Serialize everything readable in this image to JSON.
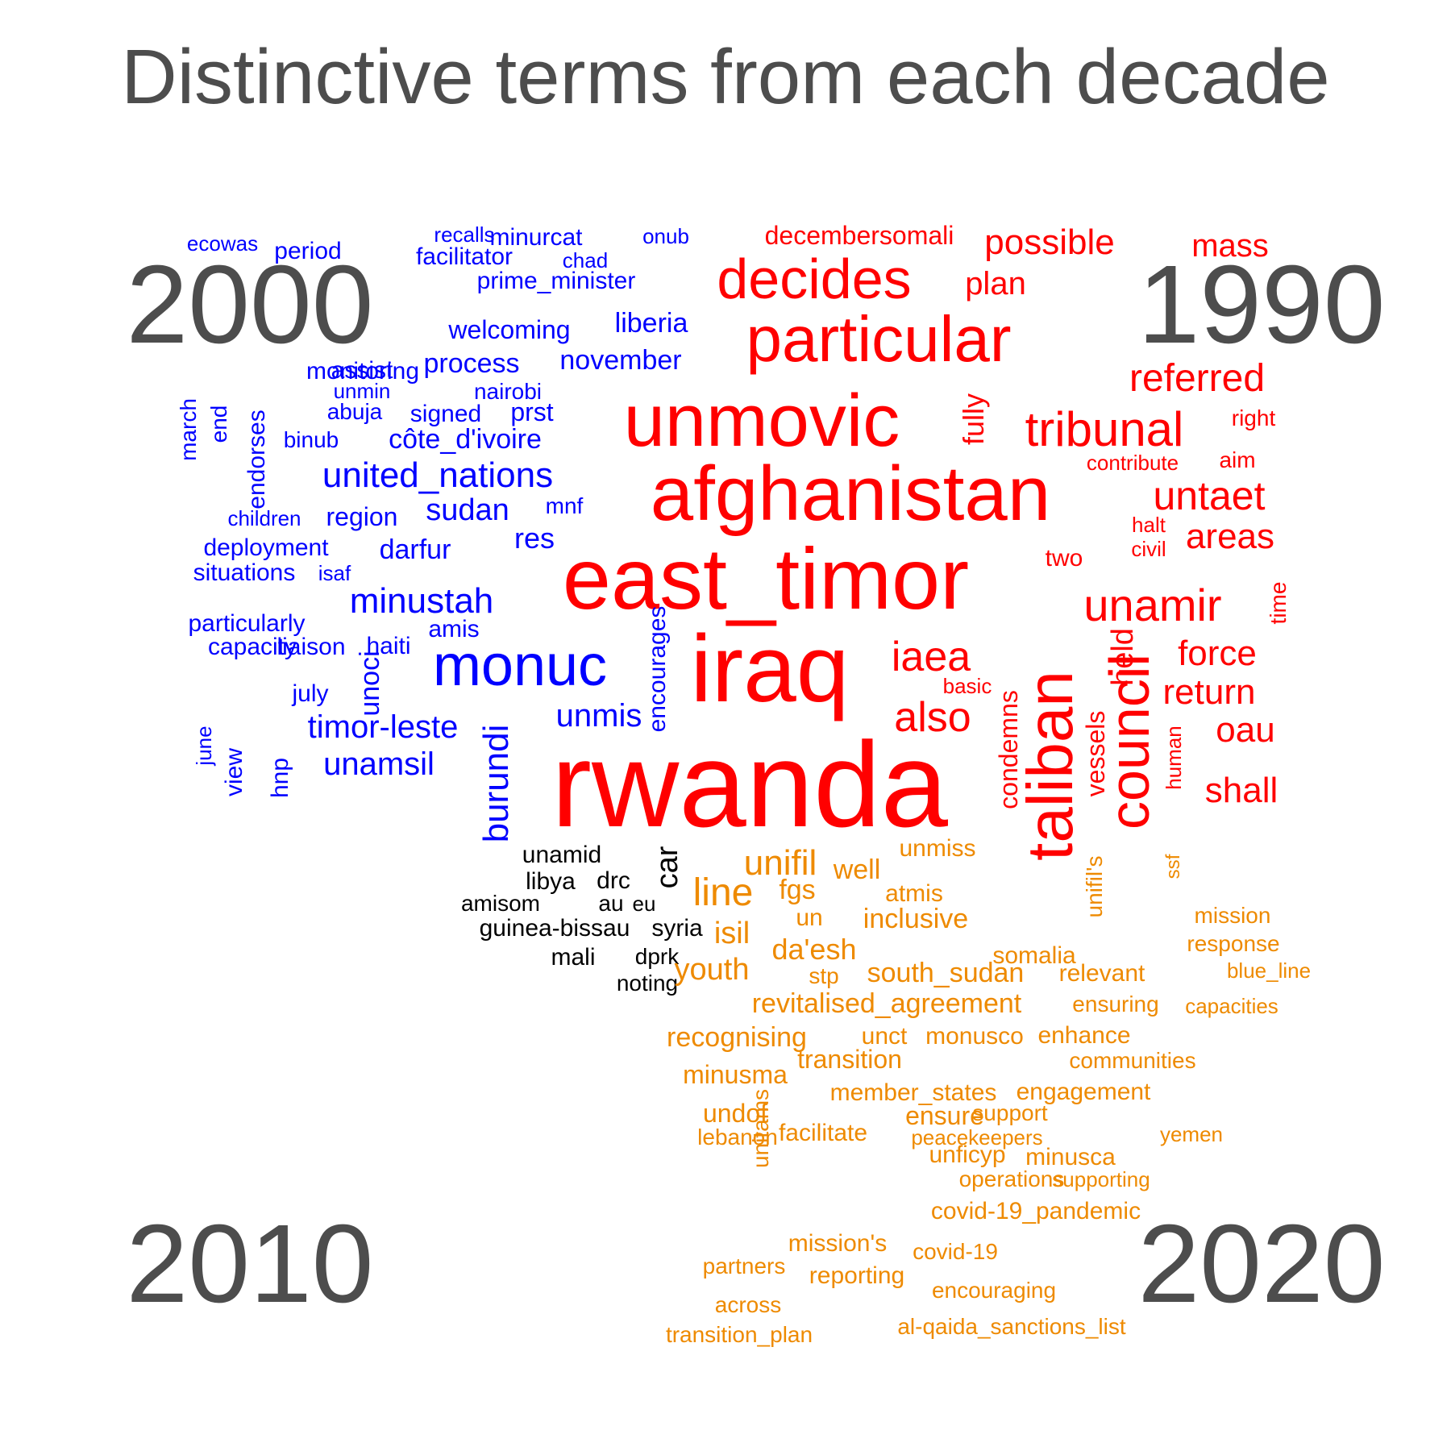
{
  "chart_data": {
    "type": "wordcloud",
    "title": "Distinctive terms from each decade",
    "decade_labels": [
      "1990",
      "2000",
      "2010",
      "2020"
    ],
    "colors": {
      "1990": "#ff0000",
      "2000": "#0000ff",
      "2010": "#000000",
      "2020": "#ee8a00",
      "title": "#4d4d4d",
      "decade_label": "#4d4d4d"
    },
    "series": [
      {
        "decade": "1990",
        "words": [
          "rwanda",
          "iraq",
          "east_timor",
          "afghanistan",
          "unmovic",
          "taliban",
          "particular",
          "decides",
          "council",
          "tribunal",
          "unamir",
          "iaea",
          "also",
          "untaet",
          "referred",
          "return",
          "force",
          "oau",
          "shall",
          "areas",
          "possible",
          "mass",
          "plan",
          "held",
          "fully",
          "decembersomali",
          "condemns",
          "vessels",
          "human",
          "right",
          "aim",
          "contribute",
          "halt",
          "civil",
          "two",
          "basic",
          "time"
        ]
      },
      {
        "decade": "2000",
        "words": [
          "monuc",
          "burundi",
          "minustah",
          "united_nations",
          "timor-leste",
          "unmis",
          "unamsil",
          "sudan",
          "darfur",
          "côte_d'ivoire",
          "liberia",
          "november",
          "process",
          "welcoming",
          "prime_minister",
          "minurcat",
          "facilitator",
          "recalls",
          "chad",
          "onub",
          "ecowas",
          "period",
          "assist",
          "unmin",
          "nairobi",
          "abuja",
          "signed",
          "prst",
          "binub",
          "region",
          "children",
          "mnf",
          "res",
          "deployment",
          "situations",
          "isaf",
          "amis",
          "particularly",
          "liaison",
          "haiti",
          "july",
          "unoci",
          "encourages",
          "june",
          "view",
          "hnp",
          "march",
          "end",
          "endorses",
          "capacity",
          "monitoring"
        ]
      },
      {
        "decade": "2010",
        "words": [
          "unamid",
          "libya",
          "drc",
          "amisom",
          "au",
          "eu",
          "guinea-bissau",
          "syria",
          "mali",
          "dprk",
          "noting",
          "car"
        ]
      },
      {
        "decade": "2020",
        "words": [
          "unifil",
          "line",
          "well",
          "unmiss",
          "fgs",
          "atmis",
          "isil",
          "un",
          "inclusive",
          "da'esh",
          "youth",
          "stp",
          "south_sudan",
          "somalia",
          "relevant",
          "revitalised_agreement",
          "ensuring",
          "capacities",
          "recognising",
          "unct",
          "monusco",
          "enhance",
          "minusma",
          "transition",
          "communities",
          "member_states",
          "engagement",
          "undof",
          "lebanon",
          "ensure",
          "support",
          "facilitate",
          "unficyp",
          "peacekeepers",
          "yemen",
          "minusca",
          "operations",
          "supporting",
          "unitams",
          "covid-19_pandemic",
          "mission's",
          "covid-19",
          "partners",
          "reporting",
          "encouraging",
          "across",
          "al-qaida_sanctions_list",
          "transition_plan",
          "mission",
          "response",
          "blue_line",
          "unifil's",
          "ssf"
        ]
      }
    ]
  }
}
